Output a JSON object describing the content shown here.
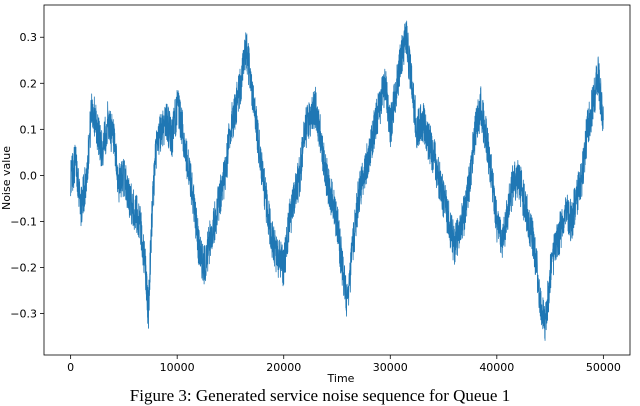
{
  "caption": "Figure 3: Generated service noise sequence for Queue 1",
  "chart_data": {
    "type": "line",
    "title": "",
    "xlabel": "Time",
    "ylabel": "Noise value",
    "xlim": [
      -2500,
      52500
    ],
    "ylim": [
      -0.39,
      0.37
    ],
    "x_ticks": [
      0,
      10000,
      20000,
      30000,
      40000,
      50000
    ],
    "y_ticks": [
      -0.3,
      -0.2,
      -0.1,
      0.0,
      0.1,
      0.2,
      0.3
    ],
    "grid": false,
    "line_color": "#1f77b4",
    "series": [
      {
        "name": "",
        "x": [
          0,
          500,
          1000,
          1500,
          2000,
          2500,
          3000,
          3500,
          4000,
          4500,
          5000,
          5500,
          6000,
          6500,
          7000,
          7300,
          7600,
          8000,
          8500,
          9000,
          9500,
          10000,
          10500,
          11000,
          11500,
          12000,
          12500,
          13000,
          13500,
          14000,
          14500,
          15000,
          15500,
          16000,
          16500,
          17000,
          17500,
          18000,
          18500,
          19000,
          19500,
          20000,
          20500,
          21000,
          21500,
          22000,
          22500,
          23000,
          23500,
          24000,
          24500,
          25000,
          25500,
          26000,
          26500,
          27000,
          27500,
          28000,
          28500,
          29000,
          29500,
          30000,
          30500,
          31000,
          31500,
          32000,
          32500,
          33000,
          33500,
          34000,
          34500,
          35000,
          35500,
          36000,
          36500,
          37000,
          37500,
          38000,
          38500,
          39000,
          39500,
          40000,
          40500,
          41000,
          41500,
          42000,
          42500,
          43000,
          43500,
          44000,
          44500,
          45000,
          45500,
          46000,
          46500,
          47000,
          47500,
          48000,
          48500,
          49000,
          49500,
          50000
        ],
        "values": [
          0.0,
          0.03,
          -0.07,
          0.0,
          0.15,
          0.1,
          0.05,
          0.12,
          0.08,
          -0.02,
          0.0,
          -0.05,
          -0.08,
          -0.1,
          -0.2,
          -0.3,
          -0.1,
          0.05,
          0.1,
          0.12,
          0.08,
          0.15,
          0.1,
          0.02,
          -0.05,
          -0.15,
          -0.2,
          -0.15,
          -0.1,
          -0.05,
          0.0,
          0.1,
          0.15,
          0.2,
          0.28,
          0.18,
          0.1,
          0.0,
          -0.08,
          -0.15,
          -0.18,
          -0.2,
          -0.1,
          -0.05,
          0.0,
          0.1,
          0.12,
          0.15,
          0.08,
          0.0,
          -0.05,
          -0.1,
          -0.2,
          -0.28,
          -0.15,
          -0.05,
          0.0,
          0.05,
          0.1,
          0.15,
          0.2,
          0.1,
          0.18,
          0.25,
          0.3,
          0.2,
          0.1,
          0.12,
          0.08,
          0.05,
          0.0,
          -0.05,
          -0.1,
          -0.15,
          -0.12,
          -0.08,
          0.0,
          0.1,
          0.15,
          0.08,
          0.0,
          -0.1,
          -0.15,
          -0.08,
          -0.02,
          0.0,
          -0.05,
          -0.1,
          -0.15,
          -0.25,
          -0.33,
          -0.22,
          -0.15,
          -0.12,
          -0.08,
          -0.1,
          -0.05,
          0.0,
          0.1,
          0.15,
          0.22,
          0.12
        ]
      }
    ]
  }
}
